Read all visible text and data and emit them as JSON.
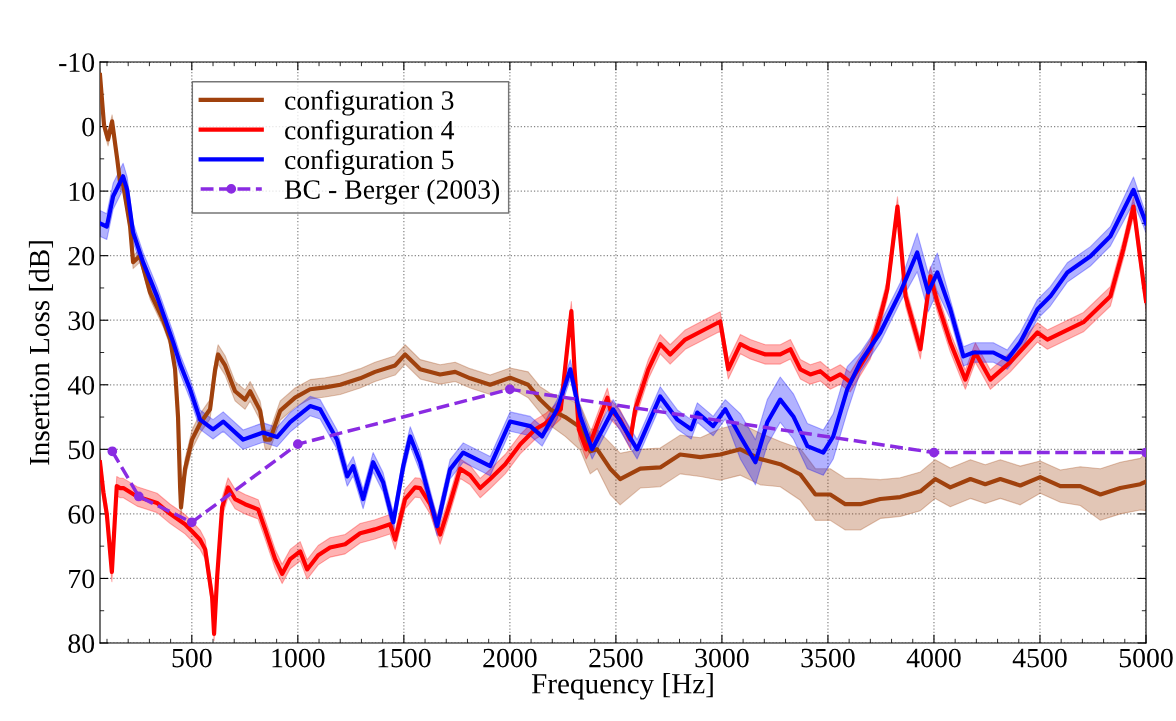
{
  "chart_data": {
    "type": "line",
    "xlabel": "Frequency [Hz]",
    "ylabel": "Insertion Loss [dB]",
    "xlim": [
      67,
      5000
    ],
    "xticks": [
      500,
      1000,
      1500,
      2000,
      2500,
      3000,
      3500,
      4000,
      4500,
      5000
    ],
    "ylim": [
      80,
      -10
    ],
    "yticks": [
      -10,
      0,
      10,
      20,
      30,
      40,
      50,
      60,
      70,
      80
    ],
    "grid": true,
    "legend": "top left",
    "line_style": "solid",
    "marker": "none",
    "series": [
      {
        "name": "configuration 3",
        "color": "#a0410d",
        "x": [
          67,
          86,
          105,
          124,
          148,
          162,
          176,
          209,
          223,
          256,
          303,
          365,
          398,
          421,
          435,
          445,
          449,
          468,
          501,
          539,
          586,
          610,
          624,
          657,
          704,
          751,
          775,
          822,
          846,
          869,
          917,
          987,
          1058,
          1129,
          1200,
          1294,
          1364,
          1459,
          1506,
          1577,
          1671,
          1742,
          1813,
          1907,
          2001,
          2086,
          2143,
          2190,
          2261,
          2332,
          2379,
          2412,
          2473,
          2520,
          2615,
          2709,
          2803,
          2898,
          2992,
          3087,
          3181,
          3275,
          3370,
          3441,
          3511,
          3582,
          3653,
          3747,
          3841,
          3936,
          4006,
          4077,
          4172,
          4242,
          4313,
          4407,
          4501,
          4596,
          4690,
          4785,
          4879,
          4973,
          5000
        ],
        "values": [
          -8,
          -0.2,
          2,
          -0.8,
          5,
          8.7,
          9,
          15.5,
          21,
          20,
          25.7,
          30,
          33,
          37.6,
          45,
          56,
          59,
          53,
          48.5,
          46,
          43.8,
          37.6,
          35.3,
          37,
          41,
          42.3,
          41,
          44,
          48.5,
          48.5,
          44,
          42,
          40.7,
          40.4,
          40,
          39,
          38,
          37,
          35.3,
          37.6,
          38.4,
          38,
          39,
          40,
          38.9,
          40,
          42.3,
          43.8,
          45,
          46.6,
          50.3,
          50,
          53,
          54.6,
          53,
          52.8,
          50.8,
          51.2,
          50.8,
          50,
          51.5,
          52.3,
          53.9,
          57,
          57,
          58.5,
          58.5,
          57.7,
          57.4,
          56.5,
          54.6,
          55.9,
          54.6,
          55.4,
          54.6,
          55.6,
          54.3,
          55.7,
          55.7,
          57,
          56,
          55.4,
          55
        ],
        "lower": [
          -9,
          -1.2,
          1,
          -1.8,
          4,
          7.7,
          8,
          14.5,
          20,
          19,
          24.7,
          29,
          32,
          36.6,
          44,
          55,
          57.5,
          51.5,
          47,
          44.5,
          42.3,
          36.1,
          33.8,
          35.5,
          39.5,
          40.8,
          39.5,
          42.5,
          47,
          47,
          42.5,
          40.5,
          39.2,
          38.9,
          38.5,
          37.5,
          36.5,
          35.5,
          33.8,
          36.1,
          36.9,
          36.5,
          37.5,
          38.5,
          37.4,
          38,
          40.3,
          41.3,
          42,
          43.1,
          46.8,
          47,
          49,
          50.6,
          50,
          49.8,
          47.8,
          48.2,
          46.8,
          46,
          47.5,
          48.8,
          49.9,
          53,
          53,
          54.5,
          54.5,
          54.7,
          54.4,
          53.5,
          51.6,
          52.9,
          51.6,
          52.4,
          51.6,
          52.6,
          51.8,
          53.2,
          52.7,
          53,
          52,
          51.4,
          50.5
        ],
        "upper": [
          -7,
          0.8,
          3,
          0.2,
          6,
          9.7,
          10,
          16.5,
          22,
          21,
          26.7,
          31,
          34,
          38.6,
          46,
          57,
          60.5,
          54.5,
          50,
          47.5,
          45.3,
          39.1,
          36.8,
          38.5,
          42.5,
          43.8,
          42.5,
          45.5,
          50,
          50,
          45.5,
          43.5,
          42.2,
          41.9,
          41.5,
          40.5,
          39.5,
          38.5,
          36.8,
          39.1,
          39.9,
          39.5,
          40.5,
          41.5,
          40.4,
          42,
          44.3,
          46.3,
          48,
          50.1,
          53.8,
          53,
          57,
          58.6,
          56,
          55.8,
          53.8,
          54.2,
          54.8,
          54,
          55.5,
          55.8,
          57.9,
          61,
          61,
          62.5,
          62.5,
          60.7,
          60.4,
          59.5,
          57.6,
          58.9,
          57.6,
          58.4,
          57.6,
          58.6,
          56.8,
          58.2,
          58.7,
          61,
          60,
          59.4,
          59.5
        ]
      },
      {
        "name": "configuration 4",
        "color": "#ff0000",
        "x": [
          67,
          83,
          99,
          123,
          146,
          162,
          177,
          242,
          336,
          398,
          468,
          501,
          539,
          563,
          596,
          605,
          619,
          643,
          671,
          704,
          751,
          813,
          846,
          893,
          926,
          964,
          1011,
          1044,
          1096,
          1152,
          1223,
          1294,
          1364,
          1435,
          1459,
          1506,
          1553,
          1577,
          1624,
          1671,
          1709,
          1766,
          1813,
          1860,
          1907,
          1978,
          2049,
          2120,
          2167,
          2240,
          2270,
          2290,
          2305,
          2325,
          2360,
          2385,
          2420,
          2460,
          2473,
          2520,
          2568,
          2591,
          2653,
          2709,
          2756,
          2827,
          2921,
          2992,
          3030,
          3087,
          3134,
          3205,
          3275,
          3323,
          3370,
          3417,
          3464,
          3511,
          3558,
          3605,
          3700,
          3747,
          3780,
          3828,
          3866,
          3936,
          3983,
          4016,
          4077,
          4148,
          4195,
          4266,
          4360,
          4488,
          4535,
          4705,
          4832,
          4893,
          4941,
          4988,
          5000
        ],
        "values": [
          52,
          56.7,
          60,
          69,
          55.7,
          56,
          56,
          57.3,
          58.3,
          60,
          61.6,
          62.7,
          64,
          65.5,
          73,
          78.6,
          70,
          59,
          55.9,
          57.7,
          58.5,
          59.3,
          62.4,
          67,
          69.3,
          67,
          65.8,
          68.6,
          66.4,
          65.2,
          64.7,
          63,
          62.4,
          61.6,
          64,
          57.7,
          55.9,
          56,
          58.5,
          63.2,
          59.3,
          53,
          54,
          56,
          54.6,
          52.3,
          49.2,
          46.9,
          46,
          43.8,
          34.5,
          28.6,
          37.6,
          46.9,
          50,
          48.5,
          45.4,
          42,
          43.8,
          45.4,
          48.5,
          43.8,
          37.6,
          33.7,
          35.3,
          33,
          31.4,
          30.2,
          37.6,
          33.7,
          34.5,
          35.3,
          35.3,
          34.5,
          37.6,
          38.4,
          37.9,
          39.2,
          38.4,
          39.6,
          34.5,
          29.4,
          25.2,
          12.4,
          26.3,
          34.5,
          23.2,
          27.2,
          33.4,
          39.2,
          35,
          39.2,
          36.5,
          31.9,
          33,
          30.3,
          26.3,
          19,
          12.4,
          24.2,
          27
        ],
        "lower": [
          50.5,
          55.2,
          58.5,
          67.5,
          54.2,
          54.5,
          54.5,
          55.8,
          56.8,
          58.5,
          60.1,
          61.2,
          62.5,
          64,
          71.5,
          77.6,
          68.5,
          57.5,
          54.4,
          56.2,
          57,
          57.8,
          60.9,
          65.5,
          67.8,
          65.5,
          64.3,
          67.1,
          64.9,
          63.7,
          63.2,
          61.5,
          60.9,
          60.1,
          62.5,
          56.2,
          54.4,
          54.5,
          57,
          61.7,
          57.8,
          51.5,
          52.5,
          54.5,
          53.1,
          50.8,
          47.7,
          45.4,
          44.5,
          42.3,
          33,
          27.1,
          36.1,
          45.4,
          48.5,
          47,
          43.9,
          40.5,
          42.3,
          43.9,
          47,
          42.3,
          36.1,
          32.2,
          33.8,
          31.5,
          29.9,
          28.7,
          36.1,
          32.2,
          33,
          33.8,
          33.8,
          33,
          36.1,
          36.9,
          36.4,
          37.7,
          36.9,
          38.1,
          33,
          27.9,
          23.7,
          10.9,
          24.8,
          33,
          21.7,
          25.7,
          31.9,
          37.7,
          33.5,
          37.7,
          35,
          30.4,
          31.5,
          28.8,
          24.8,
          17.5,
          10.9,
          22.7,
          25.5
        ],
        "upper": [
          53.5,
          58.2,
          61.5,
          70.5,
          57.2,
          57.5,
          57.5,
          58.8,
          59.8,
          61.5,
          63.1,
          64.2,
          65.5,
          67,
          74.5,
          79.6,
          71.5,
          60.5,
          57.4,
          59.2,
          60,
          60.8,
          63.9,
          68.5,
          70.8,
          68.5,
          67.3,
          70.1,
          67.9,
          66.7,
          66.2,
          64.5,
          63.9,
          63.1,
          65.5,
          59.2,
          57.4,
          57.5,
          60,
          64.7,
          60.8,
          54.5,
          55.5,
          57.5,
          56.1,
          53.8,
          50.7,
          48.4,
          47.5,
          45.3,
          36,
          30.1,
          39.1,
          48.4,
          51.5,
          50,
          46.9,
          43.5,
          45.3,
          46.9,
          50,
          45.3,
          39.1,
          35.2,
          36.8,
          34.5,
          32.9,
          31.7,
          39.1,
          35.2,
          36,
          36.8,
          36.8,
          36,
          39.1,
          39.9,
          39.4,
          40.7,
          39.9,
          41.1,
          36,
          30.9,
          26.7,
          13.9,
          27.8,
          36,
          24.7,
          28.7,
          34.9,
          40.7,
          36.5,
          40.7,
          38,
          33.4,
          34.5,
          31.8,
          27.8,
          20.5,
          13.9,
          25.7,
          28.5
        ]
      },
      {
        "name": "configuration 5",
        "color": "#0000ff",
        "x": [
          67,
          99,
          129,
          176,
          195,
          223,
          270,
          336,
          412,
          445,
          492,
          539,
          600,
          648,
          742,
          836,
          902,
          964,
          1058,
          1105,
          1185,
          1233,
          1261,
          1308,
          1355,
          1402,
          1450,
          1497,
          1530,
          1577,
          1657,
          1718,
          1780,
          1907,
          2001,
          2096,
          2152,
          2223,
          2285,
          2332,
          2388,
          2487,
          2600,
          2709,
          2790,
          2855,
          2884,
          2959,
          3016,
          3087,
          3158,
          3214,
          3275,
          3337,
          3403,
          3478,
          3525,
          3591,
          3653,
          3747,
          3841,
          3921,
          3973,
          4016,
          4077,
          4139,
          4186,
          4280,
          4346,
          4407,
          4488,
          4549,
          4629,
          4738,
          4832,
          4941,
          4988,
          5000
        ],
        "values": [
          15,
          15.5,
          10.8,
          7.7,
          9.8,
          16.4,
          21,
          26.3,
          33.4,
          36.8,
          40.7,
          45.4,
          46.9,
          45.7,
          48.5,
          47.4,
          48.1,
          45.8,
          43.3,
          43.8,
          48.5,
          54.2,
          52.6,
          57.7,
          52,
          55.1,
          61.3,
          52.6,
          48,
          52,
          61.9,
          53.1,
          50.5,
          52.6,
          45.7,
          46.4,
          48,
          43.8,
          37.6,
          44.9,
          50,
          43.8,
          50,
          41.8,
          45.4,
          46.9,
          44.3,
          46.4,
          43.8,
          48,
          52,
          45.8,
          42.3,
          44.9,
          49.5,
          50.5,
          48,
          40.7,
          36.5,
          31.9,
          25.7,
          19.5,
          25.7,
          22.6,
          28.3,
          35.6,
          35,
          35,
          36.1,
          33.4,
          28.3,
          26.3,
          22.6,
          20.1,
          17,
          9.8,
          13.9,
          15
        ],
        "lower": [
          13,
          13.5,
          8.8,
          5.7,
          7.8,
          14.9,
          19.5,
          24.8,
          31.9,
          35.3,
          39.2,
          43.9,
          45.4,
          44.2,
          47,
          45.9,
          46.6,
          44.3,
          41.8,
          42.3,
          47,
          52.7,
          51.1,
          56.2,
          50.5,
          53.6,
          59.8,
          51.1,
          46.5,
          50.5,
          60.4,
          51.6,
          49,
          51.1,
          44.2,
          44.9,
          46.5,
          42.3,
          36.1,
          43.4,
          48.5,
          42.3,
          48.5,
          40.3,
          43.9,
          45.4,
          42.8,
          44.9,
          42.3,
          44.5,
          48.5,
          42.3,
          38.8,
          41.4,
          46,
          47,
          44.5,
          37.2,
          35,
          30.4,
          24.2,
          16.5,
          22.7,
          19.6,
          26.8,
          34.1,
          33.5,
          33.5,
          34.6,
          31.9,
          26.8,
          24.8,
          21.1,
          18.6,
          15.5,
          7.8,
          12.4,
          13.5
        ],
        "upper": [
          17,
          17.5,
          12.8,
          9.7,
          11.8,
          17.9,
          22.5,
          27.8,
          34.9,
          38.3,
          42.2,
          46.9,
          48.4,
          47.2,
          50,
          48.9,
          49.6,
          47.3,
          44.8,
          45.3,
          50,
          55.7,
          54.1,
          59.2,
          53.5,
          56.6,
          62.8,
          54.1,
          49.5,
          53.5,
          63.4,
          54.6,
          52,
          54.1,
          47.2,
          47.9,
          49.5,
          45.3,
          39.1,
          46.4,
          51.5,
          45.3,
          51.5,
          43.3,
          46.9,
          48.4,
          45.8,
          47.9,
          45.3,
          51.5,
          55.5,
          49.3,
          45.8,
          48.4,
          53,
          54,
          51.5,
          44.2,
          38,
          33.4,
          27.2,
          22.5,
          28.7,
          25.6,
          29.8,
          37.1,
          36.5,
          36.5,
          37.6,
          34.9,
          29.8,
          27.8,
          24.1,
          21.6,
          18.5,
          11.8,
          15.4,
          16.5
        ]
      },
      {
        "name": "BC - Berger (2003)",
        "color": "#8a2be2",
        "line_style": "dashed",
        "marker": "circle",
        "x": [
          125,
          250,
          500,
          1000,
          2000,
          4000,
          5000
        ],
        "values": [
          50.3,
          57.3,
          61.3,
          49.2,
          40.7,
          50.5,
          50.5
        ]
      }
    ]
  }
}
